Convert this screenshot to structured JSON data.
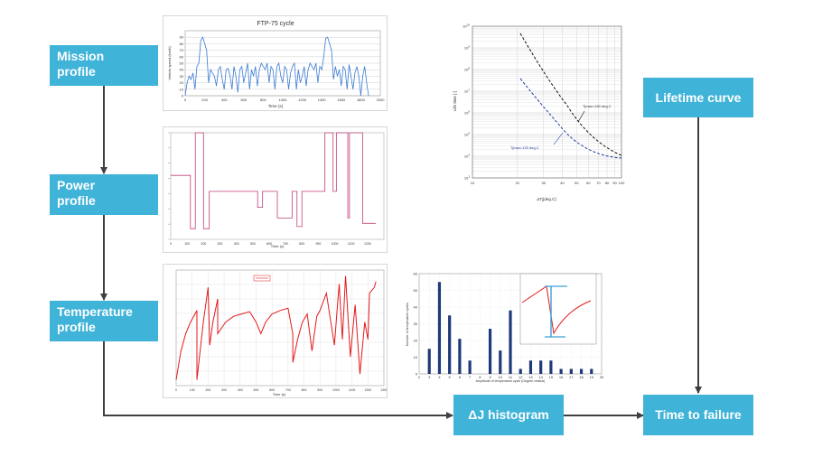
{
  "boxes": {
    "mission_line1": "Mission",
    "mission_line2": "profile",
    "power_line1": "Power",
    "power_line2": "profile",
    "temperature_line1": "Temperature",
    "temperature_line2": "profile",
    "lifetime": "Lifetime curve",
    "histogram": "ΔJ histogram",
    "time_to_failure": "Time to failure"
  },
  "colors": {
    "box": "#3fb3d8",
    "arrow": "#404040",
    "temp_line": "#e31a1c",
    "power_line": "#c0407a",
    "speed_line": "#3a7bd5",
    "bar": "#1f3a7a"
  },
  "chart_data": [
    {
      "type": "line",
      "title": "FTP-75 cycle",
      "xlabel": "Time (s)",
      "ylabel": "Vehicle speed (km/h)",
      "xlim": [
        0,
        2000
      ],
      "ylim": [
        0,
        100
      ],
      "xticks": [
        "0",
        "200",
        "400",
        "600",
        "800",
        "1000",
        "1200",
        "1400",
        "1600",
        "1800",
        "2000"
      ],
      "yticks": [
        "0",
        "10",
        "20",
        "30",
        "40",
        "50",
        "60",
        "70",
        "80",
        "90"
      ],
      "x": [
        0,
        20,
        40,
        60,
        80,
        100,
        120,
        140,
        160,
        180,
        200,
        220,
        240,
        260,
        280,
        300,
        320,
        340,
        360,
        380,
        400,
        420,
        440,
        460,
        480,
        500,
        520,
        540,
        560,
        580,
        600,
        620,
        640,
        660,
        680,
        700,
        720,
        740,
        760,
        780,
        800,
        820,
        840,
        860,
        880,
        900,
        920,
        940,
        960,
        980,
        1000,
        1020,
        1040,
        1060,
        1080,
        1100,
        1120,
        1140,
        1160,
        1180,
        1200,
        1220,
        1240,
        1260,
        1280,
        1300,
        1320,
        1340,
        1360,
        1380,
        1400,
        1420,
        1440,
        1460,
        1480,
        1500,
        1520,
        1540,
        1560,
        1580,
        1600,
        1620,
        1640,
        1660,
        1680,
        1700,
        1720,
        1740,
        1760,
        1780,
        1800,
        1820,
        1840,
        1860,
        1880
      ],
      "y": [
        0,
        20,
        30,
        25,
        35,
        10,
        45,
        50,
        85,
        90,
        80,
        70,
        20,
        40,
        35,
        30,
        15,
        40,
        45,
        25,
        10,
        40,
        42,
        30,
        10,
        45,
        30,
        5,
        40,
        45,
        20,
        35,
        50,
        10,
        40,
        30,
        45,
        15,
        40,
        50,
        45,
        40,
        50,
        20,
        45,
        40,
        10,
        45,
        50,
        30,
        20,
        45,
        40,
        10,
        35,
        45,
        50,
        10,
        40,
        20,
        30,
        45,
        15,
        40,
        50,
        45,
        40,
        50,
        20,
        45,
        40,
        60,
        88,
        90,
        80,
        70,
        25,
        45,
        30,
        40,
        15,
        45,
        40,
        10,
        48,
        30,
        10,
        35,
        45,
        30,
        0,
        30,
        45,
        20,
        0
      ]
    },
    {
      "type": "line",
      "title": "",
      "xlabel": "Time (s)",
      "ylabel": "",
      "xlim": [
        0,
        1300
      ],
      "ylim": [
        0,
        1
      ],
      "xticks": [
        "0",
        "100",
        "200",
        "300",
        "400",
        "500",
        "600",
        "700",
        "800",
        "900",
        "1000",
        "1100",
        "1200"
      ],
      "x": [
        0,
        120,
        120,
        150,
        150,
        200,
        200,
        235,
        235,
        300,
        300,
        530,
        530,
        560,
        560,
        650,
        650,
        740,
        740,
        770,
        770,
        800,
        800,
        940,
        940,
        990,
        990,
        1010,
        1010,
        1080,
        1080,
        1090,
        1090,
        1170,
        1170,
        1250
      ],
      "y": [
        0.6,
        0.6,
        0.1,
        0.1,
        1,
        1,
        0.1,
        0.1,
        0.45,
        0.45,
        0.45,
        0.45,
        0.3,
        0.3,
        0.45,
        0.45,
        0.2,
        0.2,
        0.45,
        0.45,
        0.12,
        0.12,
        0.45,
        0.45,
        1,
        1,
        0.45,
        0.45,
        1,
        1,
        0.2,
        0.2,
        1,
        1,
        0.15,
        0.15
      ]
    },
    {
      "type": "line",
      "title": "",
      "xlabel": "Time (s)",
      "ylabel": "",
      "legend": "",
      "xlim": [
        0,
        1300
      ],
      "ylim": [
        0,
        1
      ],
      "xticks": [
        "0",
        "100",
        "200",
        "300",
        "400",
        "500",
        "600",
        "700",
        "800",
        "900",
        "1000",
        "1100",
        "1200",
        "1300"
      ],
      "x": [
        0,
        30,
        60,
        90,
        130,
        130,
        170,
        200,
        210,
        230,
        260,
        260,
        310,
        360,
        410,
        460,
        500,
        530,
        560,
        600,
        650,
        700,
        730,
        730,
        760,
        790,
        820,
        850,
        880,
        900,
        940,
        990,
        1020,
        1040,
        1060,
        1090,
        1120,
        1150,
        1180,
        1200,
        1210,
        1240,
        1250
      ],
      "y": [
        0.05,
        0.3,
        0.45,
        0.55,
        0.65,
        0.05,
        0.55,
        0.85,
        0.35,
        0.55,
        0.75,
        0.45,
        0.55,
        0.6,
        0.62,
        0.64,
        0.55,
        0.45,
        0.55,
        0.62,
        0.65,
        0.67,
        0.45,
        0.2,
        0.4,
        0.55,
        0.62,
        0.3,
        0.6,
        0.65,
        0.8,
        0.35,
        0.88,
        0.4,
        0.95,
        0.25,
        0.7,
        0.1,
        0.55,
        0.4,
        0.8,
        0.85,
        0.9
      ]
    },
    {
      "type": "bar",
      "title": "",
      "xlabel": "Amplitude of temperature cycle (Degree celsius)",
      "ylabel": "Number of temperature cycles",
      "xlim": [
        2,
        20
      ],
      "ylim": [
        0,
        60
      ],
      "xticks": [
        "2",
        "3",
        "4",
        "5",
        "6",
        "7",
        "8",
        "9",
        "10",
        "11",
        "12",
        "13",
        "14",
        "15",
        "16",
        "17",
        "18",
        "19",
        "20"
      ],
      "yticks": [
        "0",
        "10",
        "20",
        "30",
        "40",
        "50",
        "60"
      ],
      "categories": [
        3,
        4,
        5,
        6,
        7,
        9,
        10,
        11,
        12,
        13,
        14,
        15,
        16,
        17,
        18,
        19
      ],
      "values": [
        15,
        55,
        35,
        21,
        8,
        27,
        14,
        38,
        3,
        8,
        8,
        8,
        3,
        3,
        3,
        3
      ]
    },
    {
      "type": "line",
      "title": "",
      "xlabel": "ΔTj[deg.C]",
      "ylabel": "Life time [-]",
      "log_y": true,
      "xticks": [
        "10",
        "20",
        "30",
        "40",
        "50",
        "60",
        "70",
        "80",
        "90",
        "100"
      ],
      "ytick_exponents": [
        3,
        4,
        5,
        6,
        7,
        8,
        9,
        10
      ],
      "series": [
        {
          "name": "Tjmax=150 deg.C",
          "style": "dashed",
          "x": [
            25,
            35,
            50,
            70,
            100
          ],
          "y": [
            10000000000.0,
            100000000.0,
            10000000.0,
            1000000.0,
            10000.0
          ]
        },
        {
          "name": "Tjmax=125 deg.C",
          "style": "dashed",
          "x": [
            25,
            35,
            50,
            70,
            100
          ],
          "y": [
            1000000000.0,
            10000000.0,
            1000000.0,
            100000.0,
            10000.0
          ]
        }
      ]
    }
  ]
}
